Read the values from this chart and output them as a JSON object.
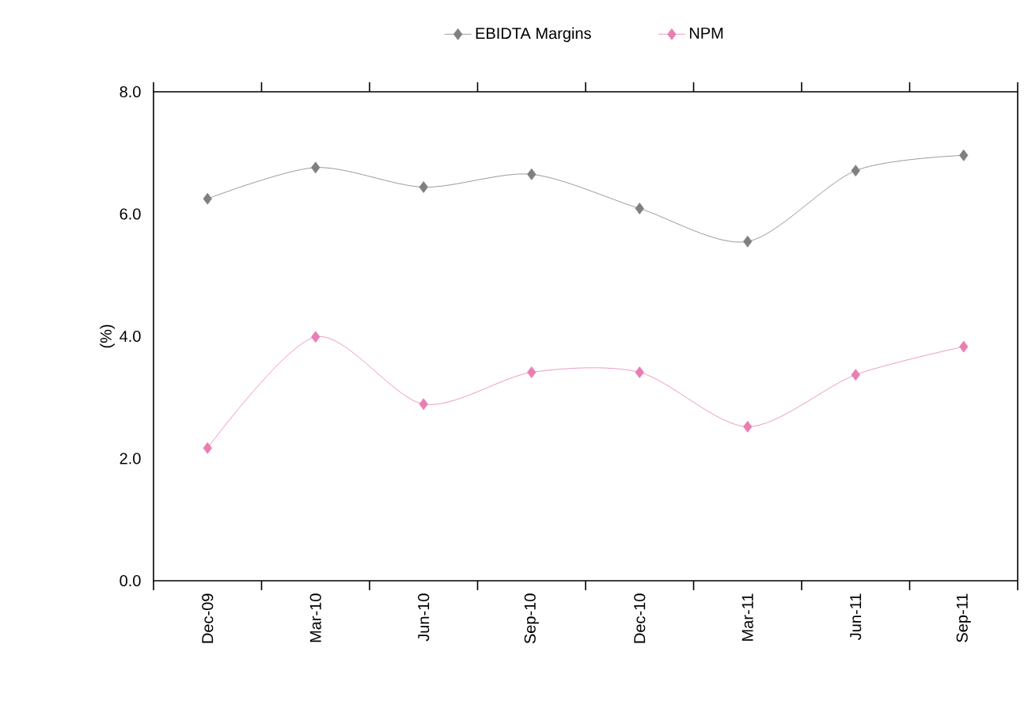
{
  "chart_data": {
    "type": "line",
    "ylabel": "(%)",
    "categories": [
      "Dec-09",
      "Mar-10",
      "Jun-10",
      "Sep-10",
      "Dec-10",
      "Mar-11",
      "Jun-11",
      "Sep-11"
    ],
    "series": [
      {
        "name": "EBIDTA Margins",
        "color": "#808080",
        "values": [
          6.25,
          6.76,
          6.44,
          6.65,
          6.09,
          5.55,
          6.71,
          6.96
        ]
      },
      {
        "name": "NPM",
        "color": "#e87fb4",
        "values": [
          2.17,
          3.99,
          2.89,
          3.41,
          3.41,
          2.52,
          3.37,
          3.83
        ]
      }
    ],
    "ylim": [
      0,
      8
    ],
    "yticks": [
      {
        "value": 0,
        "label": "0.0"
      },
      {
        "value": 2,
        "label": "2.0"
      },
      {
        "value": 4,
        "label": "4.0"
      },
      {
        "value": 6,
        "label": "6.0"
      },
      {
        "value": 8,
        "label": "8.0"
      }
    ],
    "legend": "top",
    "marker": "diamond",
    "grid": false
  }
}
